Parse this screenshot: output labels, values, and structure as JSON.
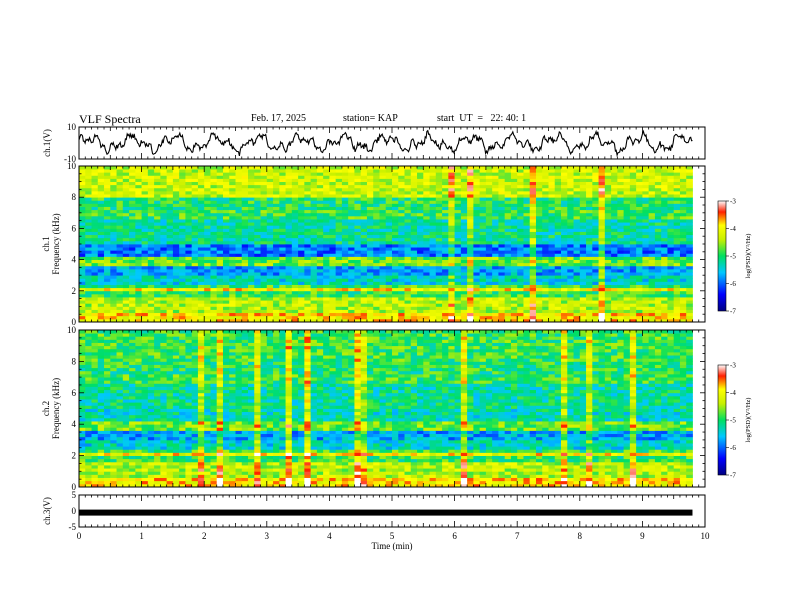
{
  "header": {
    "title": "VLF Spectra",
    "date": "Feb. 17, 2025",
    "station": "station= KAP",
    "start_ut": "start  UT  =   22: 40: 1"
  },
  "chart_data": [
    {
      "type": "line",
      "name": "ch1-waveform",
      "ylabel": "ch.1(V)",
      "ylim": [
        -10,
        10
      ],
      "yticks": [
        "10",
        "-10"
      ],
      "xlim": [
        0,
        9.8
      ],
      "description_values": "oscillating signal between about -8 and +8 V"
    },
    {
      "type": "heatmap",
      "name": "ch1-spectrogram",
      "ylabel": "ch.1\nFrequency (kHz)",
      "ylabel_lines": [
        "ch.1",
        "Frequency  (kHz)"
      ],
      "ylim": [
        0,
        10
      ],
      "yticks": [
        "0",
        "2",
        "4",
        "6",
        "8",
        "10"
      ],
      "xlim": [
        0,
        10
      ],
      "data_extent_x": [
        0,
        9.8
      ],
      "colorbar": {
        "label": "log(PSD)(V²/Hz)",
        "range": [
          -7,
          -3
        ],
        "ticks": [
          "-3",
          "-4",
          "-5",
          "-6",
          "-7"
        ]
      }
    },
    {
      "type": "heatmap",
      "name": "ch2-spectrogram",
      "ylabel_lines": [
        "ch.2",
        "Frequency  (kHz)"
      ],
      "ylim": [
        0,
        10
      ],
      "yticks": [
        "0",
        "2",
        "4",
        "6",
        "8",
        "10"
      ],
      "xlim": [
        0,
        10
      ],
      "data_extent_x": [
        0,
        9.8
      ],
      "colorbar": {
        "label": "log(PSD)(V²/Hz)",
        "range": [
          -7,
          -3
        ],
        "ticks": [
          "-3",
          "-4",
          "-5",
          "-6",
          "-7"
        ]
      }
    },
    {
      "type": "line",
      "name": "ch3-waveform",
      "ylabel": "ch.3(V)",
      "ylim": [
        -5,
        5
      ],
      "yticks": [
        "5",
        "0",
        "-5"
      ],
      "constant_value": -0.5,
      "xlim": [
        0,
        10
      ],
      "xlabel": "Time  (min)",
      "xticks": [
        "0",
        "1",
        "2",
        "3",
        "4",
        "5",
        "6",
        "7",
        "8",
        "9",
        "10"
      ]
    }
  ],
  "colorbar_label": "log(PSD)(V²/Hz)"
}
